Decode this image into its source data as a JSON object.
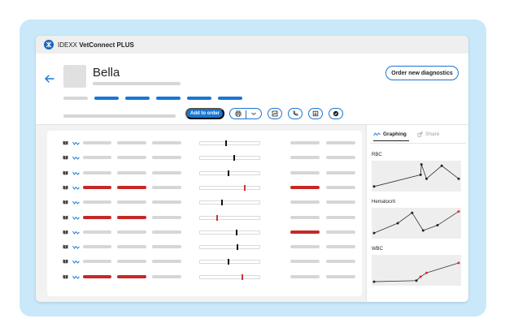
{
  "app": {
    "brand_prefix": "IDEXX",
    "brand_name": "VetConnect PLUS"
  },
  "patient": {
    "name": "Bella"
  },
  "header": {
    "order_button_label": "Order new diagnostics",
    "add_to_order_label": "Add to order",
    "tools": [
      "printer-icon",
      "chevron-down-icon",
      "chart-icon",
      "phone-icon",
      "export-icon",
      "check-icon"
    ]
  },
  "colors": {
    "accent": "#1976d2",
    "abnormal": "#c62828",
    "frame": "#c9e8fa"
  },
  "results": {
    "rows": [
      {
        "flag": "normal",
        "marker_pos": 0.42,
        "marker_flag": "normal",
        "right_flag": "normal"
      },
      {
        "flag": "normal",
        "marker_pos": 0.56,
        "marker_flag": "normal",
        "right_flag": "normal"
      },
      {
        "flag": "normal",
        "marker_pos": 0.46,
        "marker_flag": "normal",
        "right_flag": "normal"
      },
      {
        "flag": "abnormal",
        "marker_pos": 0.74,
        "marker_flag": "abnormal",
        "right_flag": "abnormal"
      },
      {
        "flag": "normal",
        "marker_pos": 0.36,
        "marker_flag": "normal",
        "right_flag": "normal"
      },
      {
        "flag": "abnormal",
        "marker_pos": 0.28,
        "marker_flag": "abnormal",
        "right_flag": "normal"
      },
      {
        "flag": "normal",
        "marker_pos": 0.6,
        "marker_flag": "normal",
        "right_flag": "abnormal"
      },
      {
        "flag": "normal",
        "marker_pos": 0.62,
        "marker_flag": "normal",
        "right_flag": "normal"
      },
      {
        "flag": "normal",
        "marker_pos": 0.46,
        "marker_flag": "normal",
        "right_flag": "normal"
      },
      {
        "flag": "abnormal",
        "marker_pos": 0.7,
        "marker_flag": "abnormal",
        "right_flag": "normal"
      }
    ]
  },
  "side_panel": {
    "tab_graphing": "Graphing",
    "tab_share": "Share",
    "graphs": [
      {
        "label": "RBC",
        "points": [
          [
            0,
            0.1
          ],
          [
            0.55,
            0.55
          ],
          [
            0.56,
            0.95
          ],
          [
            0.62,
            0.4
          ],
          [
            0.8,
            0.9
          ],
          [
            1,
            0.4
          ]
        ],
        "abnormal_points": []
      },
      {
        "label": "Hematocrit",
        "points": [
          [
            0,
            0.12
          ],
          [
            0.28,
            0.5
          ],
          [
            0.45,
            0.9
          ],
          [
            0.58,
            0.22
          ],
          [
            0.75,
            0.42
          ],
          [
            1,
            0.95
          ]
        ],
        "abnormal_points": [
          5
        ]
      },
      {
        "label": "WBC",
        "points": [
          [
            0,
            0.06
          ],
          [
            0.5,
            0.1
          ],
          [
            0.55,
            0.25
          ],
          [
            0.62,
            0.4
          ],
          [
            1,
            0.78
          ]
        ],
        "abnormal_points": [
          2,
          3,
          4
        ]
      }
    ]
  }
}
